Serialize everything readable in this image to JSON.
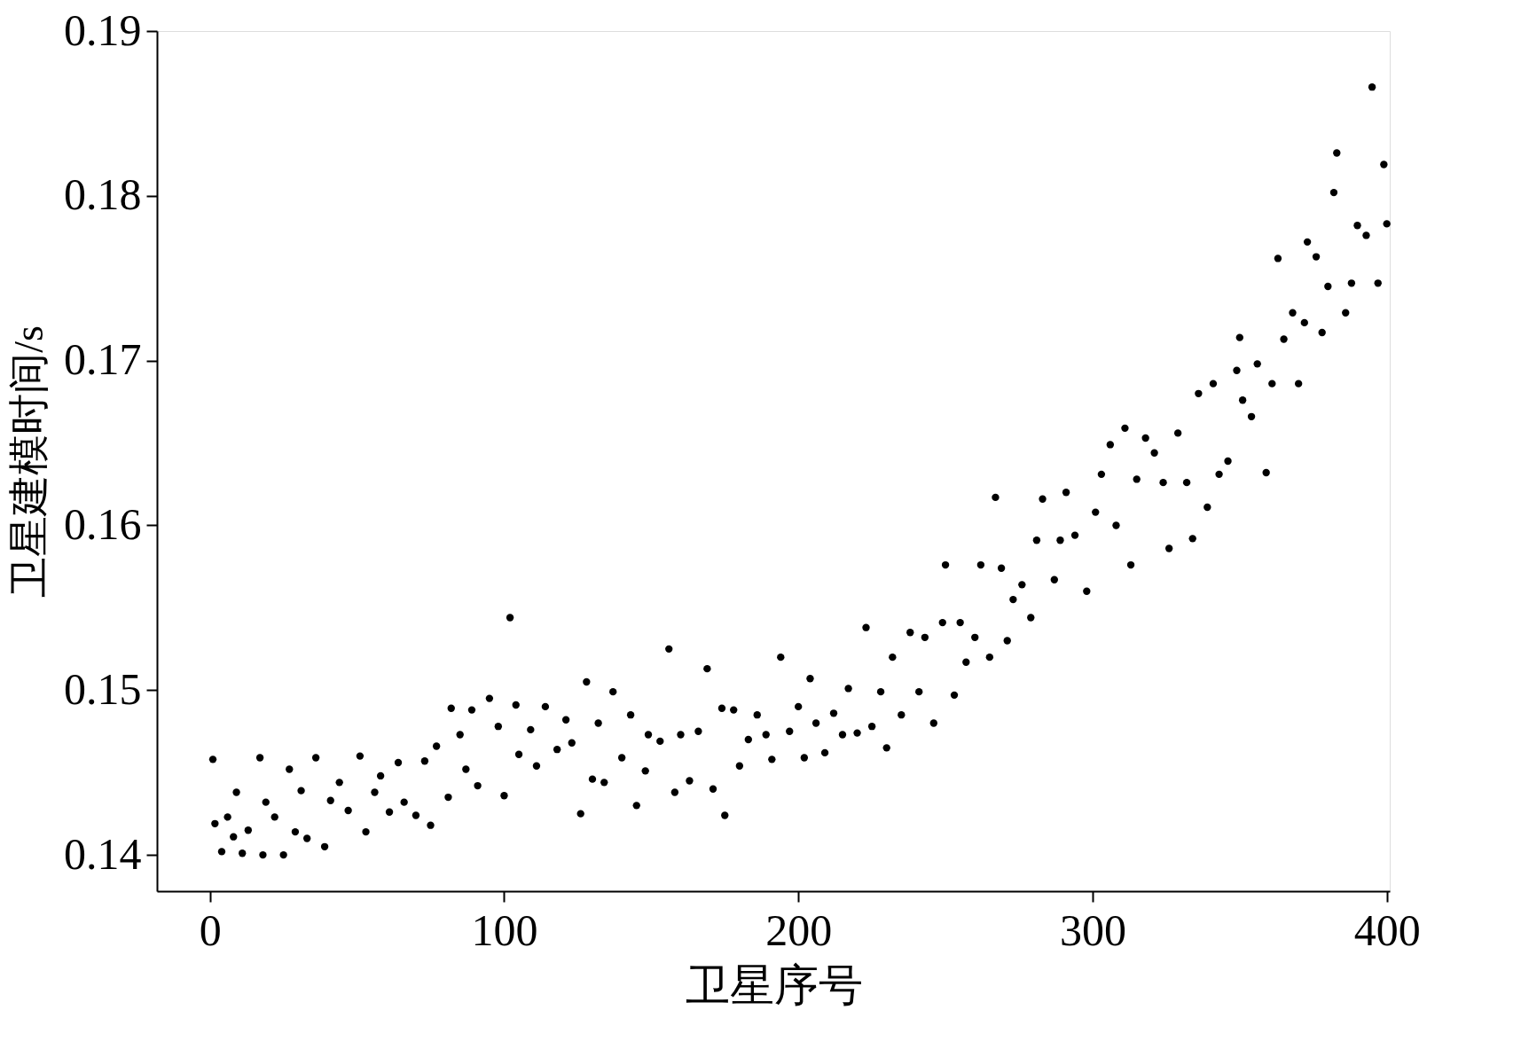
{
  "chart_data": {
    "type": "scatter",
    "xlabel": "卫星序号",
    "ylabel": "卫星建模时间/s",
    "x": [
      1,
      1.7,
      4,
      6,
      8,
      9,
      11,
      13,
      17,
      18,
      19,
      22,
      25,
      27,
      29,
      31,
      33,
      36,
      39,
      41,
      44,
      47,
      51,
      53,
      56,
      58,
      61,
      64,
      66,
      70,
      73,
      75,
      77,
      81,
      82,
      85,
      87,
      89,
      91,
      95,
      98,
      100,
      102,
      104,
      105,
      109,
      111,
      114,
      118,
      121,
      123,
      126,
      128,
      130,
      132,
      134,
      137,
      140,
      143,
      145,
      148,
      149,
      153,
      156,
      158,
      160,
      163,
      166,
      169,
      171,
      174,
      175,
      178,
      180,
      183,
      186,
      189,
      191,
      194,
      197,
      200,
      202,
      204,
      206,
      209,
      212,
      215,
      217,
      220,
      223,
      225,
      228,
      230,
      232,
      235,
      238,
      241,
      243,
      246,
      249,
      250,
      253,
      255,
      257,
      260,
      262,
      265,
      267,
      269,
      271,
      273,
      276,
      279,
      281,
      283,
      287,
      289,
      291,
      294,
      298,
      301,
      303,
      306,
      308,
      311,
      313,
      315,
      318,
      321,
      324,
      326,
      329,
      332,
      334,
      336,
      339,
      341,
      343,
      346,
      349,
      350,
      351,
      354,
      356,
      359,
      361,
      363,
      365,
      368,
      370,
      372,
      373,
      376,
      378,
      380,
      382,
      383,
      386,
      388,
      390,
      393,
      395,
      397,
      399,
      400
    ],
    "series": [
      {
        "color": "#000000",
        "values": [
          0.1458,
          0.1419,
          0.1402,
          0.1423,
          0.1411,
          0.1438,
          0.1401,
          0.1415,
          0.1459,
          0.14,
          0.1432,
          0.1423,
          0.14,
          0.1452,
          0.1414,
          0.1439,
          0.141,
          0.1459,
          0.1405,
          0.1433,
          0.1444,
          0.1427,
          0.146,
          0.1414,
          0.1438,
          0.1448,
          0.1426,
          0.1456,
          0.1432,
          0.1424,
          0.1457,
          0.1418,
          0.1466,
          0.1435,
          0.1489,
          0.1473,
          0.1452,
          0.1488,
          0.1442,
          0.1495,
          0.1478,
          0.1436,
          0.1544,
          0.1491,
          0.1461,
          0.1476,
          0.1454,
          0.149,
          0.1464,
          0.1482,
          0.1468,
          0.1425,
          0.1505,
          0.1446,
          0.148,
          0.1444,
          0.1499,
          0.1459,
          0.1485,
          0.143,
          0.1451,
          0.1473,
          0.1469,
          0.1525,
          0.1438,
          0.1473,
          0.1445,
          0.1475,
          0.1513,
          0.144,
          0.1489,
          0.1424,
          0.1488,
          0.1454,
          0.147,
          0.1485,
          0.1473,
          0.1458,
          0.152,
          0.1475,
          0.149,
          0.1459,
          0.1507,
          0.148,
          0.1462,
          0.1486,
          0.1473,
          0.1501,
          0.1474,
          0.1538,
          0.1478,
          0.1499,
          0.1465,
          0.152,
          0.1485,
          0.1535,
          0.1499,
          0.1532,
          0.148,
          0.1541,
          0.1576,
          0.1497,
          0.1541,
          0.1517,
          0.1532,
          0.1576,
          0.152,
          0.1617,
          0.1574,
          0.153,
          0.1555,
          0.1564,
          0.1544,
          0.1591,
          0.1616,
          0.1567,
          0.1591,
          0.162,
          0.1594,
          0.156,
          0.1608,
          0.1631,
          0.1649,
          0.16,
          0.1659,
          0.1576,
          0.1628,
          0.1653,
          0.1644,
          0.1626,
          0.1586,
          0.1656,
          0.1626,
          0.1592,
          0.168,
          0.1611,
          0.1686,
          0.1631,
          0.1639,
          0.1694,
          0.1714,
          0.1676,
          0.1666,
          0.1698,
          0.1632,
          0.1686,
          0.1762,
          0.1713,
          0.1729,
          0.1686,
          0.1723,
          0.1772,
          0.1763,
          0.1717,
          0.1745,
          0.1802,
          0.1826,
          0.1729,
          0.1747,
          0.1782,
          0.1776,
          0.1866,
          0.1747,
          0.1819,
          0.1783
        ]
      }
    ],
    "xlim": [
      -18,
      401
    ],
    "ylim": [
      0.1378,
      0.19
    ],
    "xticks": [
      0,
      100,
      200,
      300,
      400
    ],
    "yticks": [
      {
        "value": 0.14,
        "label": "0.14"
      },
      {
        "value": 0.15,
        "label": "0.15"
      },
      {
        "value": 0.16,
        "label": "0.16"
      },
      {
        "value": 0.17,
        "label": "0.17"
      },
      {
        "value": 0.18,
        "label": "0.18"
      },
      {
        "value": 0.19,
        "label": "0.19"
      }
    ],
    "grid": false,
    "marker": "circle"
  }
}
